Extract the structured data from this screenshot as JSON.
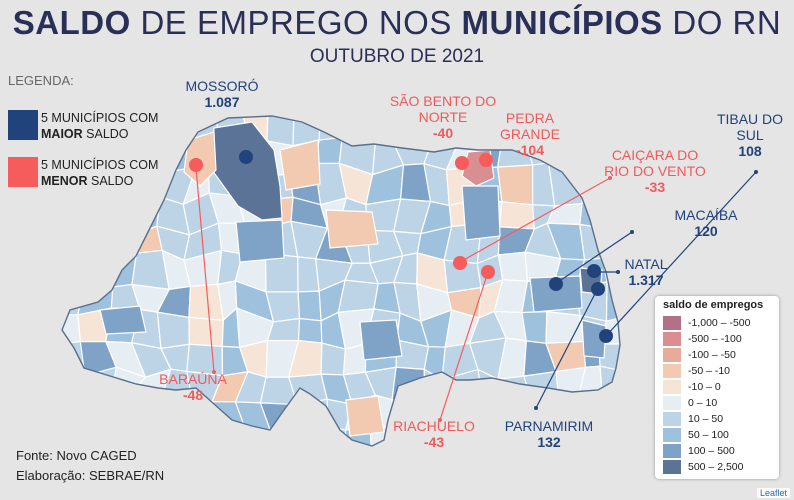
{
  "title": {
    "part1_bold": "SALDO",
    "part2": " DE EMPREGO NOS ",
    "part3_bold": "MUNICÍPIOS",
    "part4": " DO RN"
  },
  "subtitle": "OUTUBRO DE 2021",
  "legend": {
    "heading": "LEGENDA:",
    "max": {
      "prefix": "5 MUNICÍPIOS COM",
      "bold": "MAIOR",
      "suffix": " SALDO",
      "color": "#21437c"
    },
    "min": {
      "prefix": "5 MUNICÍPIOS COM",
      "bold": "MENOR",
      "suffix": " SALDO",
      "color": "#f65c5c"
    }
  },
  "labels": [
    {
      "name": "MOSSORÓ",
      "value": "1.087",
      "type": "max"
    },
    {
      "name": "SÃO BENTO DO NORTE",
      "value": "-40",
      "type": "min"
    },
    {
      "name": "PEDRA GRANDE",
      "value": "-104",
      "type": "min"
    },
    {
      "name": "TIBAU DO SUL",
      "value": "108",
      "type": "max"
    },
    {
      "name": "CAIÇARA DO RIO DO VENTO",
      "value": "-33",
      "type": "min"
    },
    {
      "name": "MACAÍBA",
      "value": "120",
      "type": "max"
    },
    {
      "name": "NATAL",
      "value": "1.317",
      "type": "max"
    },
    {
      "name": "BARAÚNA",
      "value": "-48",
      "type": "min"
    },
    {
      "name": "RIACHUELO",
      "value": "-43",
      "type": "min"
    },
    {
      "name": "PARNAMIRIM",
      "value": "132",
      "type": "max"
    }
  ],
  "scale": {
    "title": "saldo de empregos",
    "classes": [
      {
        "label": "-1,000 – -500",
        "color": "#b27187"
      },
      {
        "label": "-500 – -100",
        "color": "#d98f92"
      },
      {
        "label": "-100 – -50",
        "color": "#e7ab99"
      },
      {
        "label": "-50 – -10",
        "color": "#f2c9b1"
      },
      {
        "label": "-10 – 0",
        "color": "#f6e4d7"
      },
      {
        "label": "0 – 10",
        "color": "#e6eef4"
      },
      {
        "label": "10 – 50",
        "color": "#bcd4e6"
      },
      {
        "label": "50 – 100",
        "color": "#9ec1dd"
      },
      {
        "label": "100 – 500",
        "color": "#7ea3c7"
      },
      {
        "label": "500 – 2,500",
        "color": "#5b7397"
      }
    ]
  },
  "credits": {
    "source": "Fonte: Novo CAGED",
    "author": "Elaboração: SEBRAE/RN"
  },
  "attribution": "Leaflet"
}
